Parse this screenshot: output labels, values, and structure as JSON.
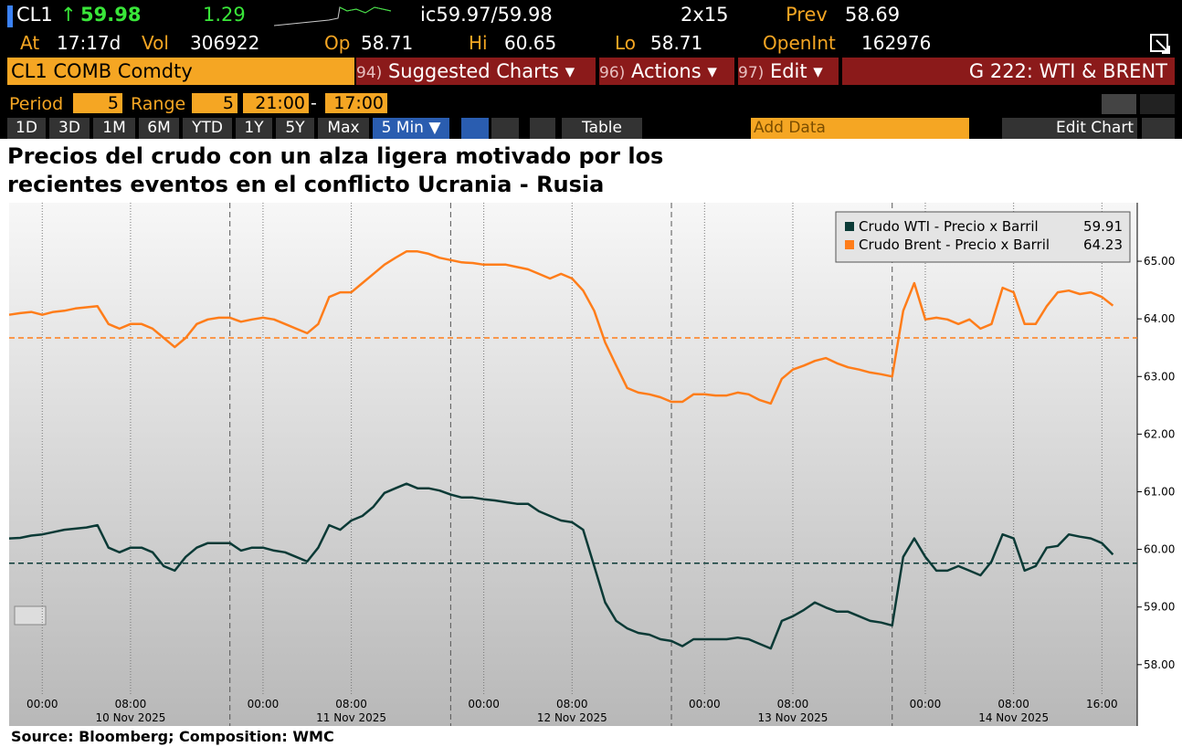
{
  "header": {
    "ticker": "CL1",
    "price": "59.98",
    "change": "1.29",
    "bid_ask": "ic59.97/59.98",
    "size": "2x15",
    "prev_label": "Prev",
    "prev": "58.69",
    "at_label": "At",
    "time": "17:17d",
    "vol_label": "Vol",
    "vol": "306922",
    "op_label": "Op",
    "op": "58.71",
    "hi_label": "Hi",
    "hi": "60.65",
    "lo_label": "Lo",
    "lo": "58.71",
    "oi_label": "OpenInt",
    "oi": "162976"
  },
  "menu": {
    "security": "CL1 COMB Comdty",
    "items": [
      {
        "key": "94)",
        "label": "Suggested Charts ▾"
      },
      {
        "key": "96)",
        "label": "Actions ▾"
      },
      {
        "key": "97)",
        "label": "Edit ▾"
      }
    ],
    "chart_name": "G 222: WTI & BRENT"
  },
  "controls": {
    "period_label": "Period",
    "period": "5",
    "range_label": "Range",
    "range": "5",
    "start": "21:00",
    "end": "17:00"
  },
  "toolbar": {
    "tabs": [
      "1D",
      "3D",
      "1M",
      "6M",
      "YTD",
      "1Y",
      "5Y",
      "Max",
      "5 Min ▼"
    ],
    "table": "Table",
    "add_data": "Add Data",
    "edit_chart": "Edit Chart"
  },
  "chart_data": {
    "type": "line",
    "title": "Precios del crudo con un alza ligera motivado por los recientes eventos en el conflicto Ucrania - Rusia",
    "source": "Source: Bloomberg; Composition: WMC",
    "x": [
      0,
      1,
      2,
      3,
      4,
      5,
      6,
      7,
      8,
      9,
      10,
      11,
      12,
      13,
      14,
      15,
      16,
      17,
      18,
      19,
      20,
      21,
      22,
      23,
      24,
      25,
      26,
      27,
      28,
      29,
      30,
      31,
      32,
      33,
      34,
      35,
      36,
      37,
      38,
      39,
      40,
      41,
      42,
      43,
      44,
      45,
      46,
      47,
      48,
      49,
      50,
      51,
      52,
      53,
      54,
      55,
      56,
      57,
      58,
      59,
      60,
      61,
      62,
      63,
      64,
      65,
      66,
      67,
      68,
      69,
      70,
      71,
      72,
      73,
      74,
      75,
      76,
      77,
      78,
      79,
      80,
      81,
      82,
      83,
      84,
      85,
      86,
      87,
      88,
      89,
      90,
      91,
      92,
      93,
      94,
      95,
      96,
      97,
      98,
      99,
      100
    ],
    "series": [
      {
        "name": "Crudo WTI - Precio x Barril",
        "color": "#0b3a36",
        "last_value": 59.91,
        "reference": 59.76,
        "values": [
          60.19,
          60.2,
          60.24,
          60.26,
          60.3,
          60.34,
          60.36,
          60.38,
          60.42,
          60.03,
          59.95,
          60.03,
          60.03,
          59.95,
          59.71,
          59.63,
          59.87,
          60.03,
          60.11,
          60.11,
          60.11,
          59.98,
          60.03,
          60.03,
          59.98,
          59.95,
          59.87,
          59.79,
          60.03,
          60.42,
          60.34,
          60.5,
          60.58,
          60.74,
          60.98,
          61.06,
          61.14,
          61.06,
          61.06,
          61.02,
          60.95,
          60.9,
          60.9,
          60.87,
          60.85,
          60.82,
          60.79,
          60.79,
          60.66,
          60.58,
          60.5,
          60.47,
          60.34,
          59.71,
          59.08,
          58.76,
          58.63,
          58.55,
          58.52,
          58.44,
          58.41,
          58.32,
          58.44,
          58.44,
          58.44,
          58.44,
          58.47,
          58.44,
          58.36,
          58.28,
          58.76,
          58.84,
          58.95,
          59.08,
          58.99,
          58.92,
          58.92,
          58.84,
          58.76,
          58.73,
          58.68,
          59.87,
          60.19,
          59.87,
          59.63,
          59.63,
          59.71,
          59.63,
          59.55,
          59.79,
          60.26,
          60.19,
          59.63,
          59.71,
          60.03,
          60.06,
          60.26,
          60.22,
          60.19,
          60.11,
          59.91
        ]
      },
      {
        "name": "Crudo Brent - Precio x Barril",
        "color": "#ff7d1a",
        "last_value": 64.23,
        "reference": 63.67,
        "values": [
          64.07,
          64.1,
          64.12,
          64.07,
          64.12,
          64.14,
          64.18,
          64.2,
          64.22,
          63.91,
          63.83,
          63.91,
          63.91,
          63.83,
          63.67,
          63.51,
          63.67,
          63.91,
          63.99,
          64.02,
          64.02,
          63.95,
          63.99,
          64.02,
          63.99,
          63.91,
          63.83,
          63.75,
          63.91,
          64.38,
          64.46,
          64.46,
          64.62,
          64.78,
          64.94,
          65.06,
          65.17,
          65.17,
          65.13,
          65.06,
          65.02,
          64.98,
          64.97,
          64.94,
          64.94,
          64.94,
          64.9,
          64.86,
          64.78,
          64.7,
          64.78,
          64.7,
          64.49,
          64.14,
          63.59,
          63.19,
          62.8,
          62.72,
          62.69,
          62.64,
          62.56,
          62.56,
          62.69,
          62.69,
          62.67,
          62.67,
          62.72,
          62.69,
          62.59,
          62.53,
          62.96,
          63.12,
          63.19,
          63.27,
          63.32,
          63.23,
          63.16,
          63.12,
          63.07,
          63.04,
          63.0,
          64.14,
          64.62,
          63.99,
          64.02,
          63.99,
          63.91,
          63.99,
          63.83,
          63.91,
          64.54,
          64.46,
          63.91,
          63.91,
          64.22,
          64.46,
          64.49,
          64.43,
          64.46,
          64.38,
          64.23
        ]
      }
    ],
    "xlim": [
      0,
      102.2
    ],
    "ylim": [
      57.49,
      65.92
    ],
    "xticks": [
      {
        "value": 3,
        "label": "00:00"
      },
      {
        "value": 11,
        "label": "08:00"
      },
      {
        "value": 23,
        "label": "00:00"
      },
      {
        "value": 31,
        "label": "08:00"
      },
      {
        "value": 43,
        "label": "00:00"
      },
      {
        "value": 51,
        "label": "08:00"
      },
      {
        "value": 63,
        "label": "00:00"
      },
      {
        "value": 71,
        "label": "08:00"
      },
      {
        "value": 83,
        "label": "00:00"
      },
      {
        "value": 91,
        "label": "08:00"
      },
      {
        "value": 99,
        "label": "16:00"
      }
    ],
    "date_ticks": [
      {
        "value": 11,
        "label": "10 Nov 2025"
      },
      {
        "value": 31,
        "label": "11 Nov 2025"
      },
      {
        "value": 51,
        "label": "12 Nov 2025"
      },
      {
        "value": 71,
        "label": "13 Nov 2025"
      },
      {
        "value": 91,
        "label": "14 Nov 2025"
      }
    ],
    "session_breaks": [
      20,
      40,
      60,
      80
    ],
    "yticks": [
      {
        "value": 58,
        "label": "58.00"
      },
      {
        "value": 59,
        "label": "59.00"
      },
      {
        "value": 60,
        "label": "60.00"
      },
      {
        "value": 61,
        "label": "61.00"
      },
      {
        "value": 62,
        "label": "62.00"
      },
      {
        "value": 63,
        "label": "63.00"
      },
      {
        "value": 64,
        "label": "64.00"
      },
      {
        "value": 65,
        "label": "65.00"
      }
    ],
    "x_grid": true,
    "legend": "top-right"
  }
}
